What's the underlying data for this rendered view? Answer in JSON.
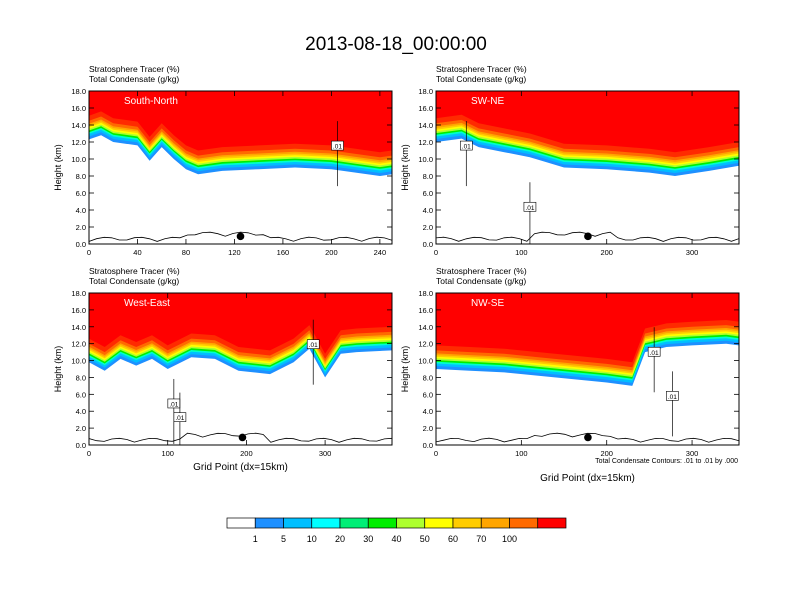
{
  "title": "2013-08-18_00:00:00",
  "colors": {
    "background": "#ffffff",
    "tracer_fill": "#ff0000",
    "ground": "#000000"
  },
  "colorbar": {
    "labels": [
      "1",
      "5",
      "10",
      "20",
      "30",
      "40",
      "50",
      "60",
      "70",
      "100"
    ],
    "colors": [
      "#ffffff",
      "#1e90ff",
      "#00bfff",
      "#00ffff",
      "#00ee76",
      "#00ee00",
      "#adff2f",
      "#ffff00",
      "#ffcc00",
      "#ffa500",
      "#ff6a00",
      "#ff0000"
    ]
  },
  "chart_data": [
    {
      "type": "heatmap",
      "panel": "South-North",
      "header_left": [
        "Stratosphere Tracer   (%)",
        "Total Condensate   (g/kg)"
      ],
      "ylabel": "Height (km)",
      "xlabel": "",
      "ylim": [
        0,
        18
      ],
      "yticks": [
        "0.0",
        "2.0",
        "4.0",
        "6.0",
        "8.0",
        "10.0",
        "12.0",
        "14.0",
        "16.0",
        "18.0"
      ],
      "xlim": [
        0,
        250
      ],
      "xticks": [
        0,
        40,
        80,
        120,
        160,
        200,
        240
      ],
      "contour_labels": [
        ".01"
      ],
      "tropopause_km": [
        [
          0,
          14.5
        ],
        [
          10,
          15.0
        ],
        [
          20,
          14.2
        ],
        [
          40,
          13.8
        ],
        [
          50,
          12.0
        ],
        [
          60,
          13.6
        ],
        [
          70,
          12.2
        ],
        [
          80,
          11.0
        ],
        [
          90,
          10.4
        ],
        [
          110,
          10.8
        ],
        [
          140,
          11.0
        ],
        [
          170,
          11.2
        ],
        [
          200,
          11.0
        ],
        [
          220,
          10.6
        ],
        [
          240,
          10.2
        ],
        [
          250,
          10.4
        ]
      ],
      "marker_x": 125
    },
    {
      "type": "heatmap",
      "panel": "SW-NE",
      "header_left": [
        "Stratosphere Tracer   (%)",
        "Total Condensate   (g/kg)"
      ],
      "ylabel": "Height (km)",
      "xlabel": "",
      "ylim": [
        0,
        18
      ],
      "yticks": [
        "0.0",
        "2.0",
        "4.0",
        "6.0",
        "8.0",
        "10.0",
        "12.0",
        "14.0",
        "16.0",
        "18.0"
      ],
      "xlim": [
        0,
        355
      ],
      "xticks": [
        0,
        100,
        200,
        300
      ],
      "contour_labels": [
        ".01",
        ".01"
      ],
      "tropopause_km": [
        [
          0,
          14.2
        ],
        [
          30,
          14.6
        ],
        [
          50,
          13.6
        ],
        [
          80,
          13.0
        ],
        [
          110,
          12.4
        ],
        [
          130,
          11.8
        ],
        [
          150,
          11.2
        ],
        [
          200,
          11.0
        ],
        [
          250,
          10.6
        ],
        [
          280,
          10.2
        ],
        [
          320,
          10.8
        ],
        [
          355,
          11.4
        ]
      ],
      "marker_x": 178
    },
    {
      "type": "heatmap",
      "panel": "West-East",
      "header_left": [
        "Stratosphere Tracer   (%)",
        "Total Condensate   (g/kg)"
      ],
      "ylabel": "Height (km)",
      "xlabel": "Grid Point (dx=15km)",
      "ylim": [
        0,
        18
      ],
      "yticks": [
        "0.0",
        "2.0",
        "4.0",
        "6.0",
        "8.0",
        "10.0",
        "12.0",
        "14.0",
        "16.0",
        "18.0"
      ],
      "xlim": [
        0,
        385
      ],
      "xticks": [
        0,
        100,
        200,
        300
      ],
      "contour_labels": [
        ".01",
        ".01",
        ".01"
      ],
      "tropopause_km": [
        [
          0,
          12.0
        ],
        [
          20,
          11.0
        ],
        [
          40,
          12.4
        ],
        [
          60,
          11.6
        ],
        [
          80,
          12.4
        ],
        [
          100,
          11.2
        ],
        [
          130,
          12.6
        ],
        [
          160,
          12.4
        ],
        [
          190,
          11.0
        ],
        [
          230,
          10.6
        ],
        [
          260,
          12.0
        ],
        [
          280,
          13.6
        ],
        [
          300,
          10.2
        ],
        [
          320,
          13.0
        ],
        [
          340,
          13.2
        ],
        [
          385,
          13.4
        ]
      ],
      "marker_x": 195
    },
    {
      "type": "heatmap",
      "panel": "NW-SE",
      "header_left": [
        "Stratosphere Tracer   (%)",
        "Total Condensate   (g/kg)"
      ],
      "ylabel": "Height (km)",
      "xlabel": "Grid Point (dx=15km)",
      "ylim": [
        0,
        18
      ],
      "yticks": [
        "0.0",
        "2.0",
        "4.0",
        "6.0",
        "8.0",
        "10.0",
        "12.0",
        "14.0",
        "16.0",
        "18.0"
      ],
      "xlim": [
        0,
        355
      ],
      "xticks": [
        0,
        100,
        200,
        300
      ],
      "contour_labels": [
        ".01",
        ".01"
      ],
      "tropopause_km": [
        [
          0,
          11.2
        ],
        [
          40,
          11.0
        ],
        [
          80,
          10.8
        ],
        [
          120,
          10.4
        ],
        [
          160,
          10.0
        ],
        [
          200,
          9.6
        ],
        [
          230,
          9.2
        ],
        [
          245,
          13.2
        ],
        [
          270,
          13.8
        ],
        [
          300,
          14.0
        ],
        [
          340,
          14.2
        ],
        [
          355,
          14.0
        ]
      ],
      "marker_x": 178,
      "footnote": "Total Condensate Contours: .01 to .01 by .000"
    }
  ]
}
